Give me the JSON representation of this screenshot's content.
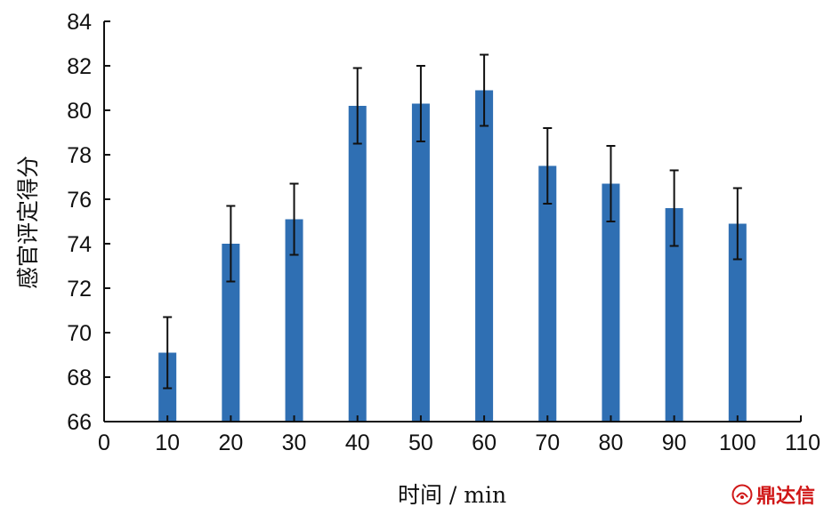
{
  "chart_data": {
    "type": "bar",
    "x": [
      10,
      20,
      30,
      40,
      50,
      60,
      70,
      80,
      90,
      100
    ],
    "values": [
      69.1,
      74.0,
      75.1,
      80.2,
      80.3,
      80.9,
      77.5,
      76.7,
      75.6,
      74.9
    ],
    "errors": [
      1.6,
      1.7,
      1.6,
      1.7,
      1.7,
      1.6,
      1.7,
      1.7,
      1.7,
      1.6
    ],
    "xlabel": "时间 / min",
    "ylabel": "感官评定得分",
    "xlim": [
      0,
      110
    ],
    "ylim": [
      66,
      84
    ],
    "xticks": [
      0,
      10,
      20,
      30,
      40,
      50,
      60,
      70,
      80,
      90,
      100,
      110
    ],
    "yticks": [
      66,
      68,
      70,
      72,
      74,
      76,
      78,
      80,
      82,
      84
    ],
    "grid": false,
    "legend": false,
    "bar_color": "#2f6fb3",
    "error_color": "#111111"
  },
  "watermark": {
    "text": "鼎达信",
    "icon": "ddx-logo-icon",
    "color": "#d01717"
  }
}
